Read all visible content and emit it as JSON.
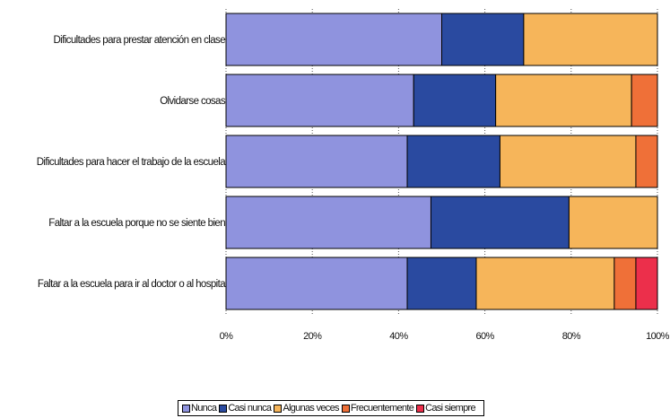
{
  "chart_data": {
    "type": "bar",
    "orientation": "horizontal",
    "stacked": "percent",
    "categories": [
      "Dificultades para prestar atención en clase",
      "Olvidarse cosas",
      "Dificultades para hacer el trabajo de la escuela",
      "Faltar a la escuela porque no se siente bien",
      "Faltar a la escuela para ir al doctor o al hospita"
    ],
    "series": [
      {
        "name": "Nunca",
        "color": "#8f93de",
        "values": [
          50,
          43.5,
          42,
          47.5,
          42
        ]
      },
      {
        "name": "Casi nunca",
        "color": "#2a4aa0",
        "values": [
          19,
          19,
          21.5,
          32,
          16
        ]
      },
      {
        "name": "Algunas veces",
        "color": "#f6b55a",
        "values": [
          31,
          31.5,
          31.5,
          20.5,
          32
        ]
      },
      {
        "name": "Frecuentemente",
        "color": "#ef7038",
        "values": [
          0,
          6,
          5,
          0,
          5
        ]
      },
      {
        "name": "Casi siempre",
        "color": "#ec2f4b",
        "values": [
          0,
          0,
          0,
          0,
          5
        ]
      }
    ],
    "xaxis": {
      "ticks": [
        "0%",
        "20%",
        "40%",
        "60%",
        "80%",
        "100%"
      ],
      "range": [
        0,
        100
      ]
    },
    "title": "",
    "xlabel": "",
    "ylabel": "",
    "legend_position": "bottom",
    "grid": true
  }
}
